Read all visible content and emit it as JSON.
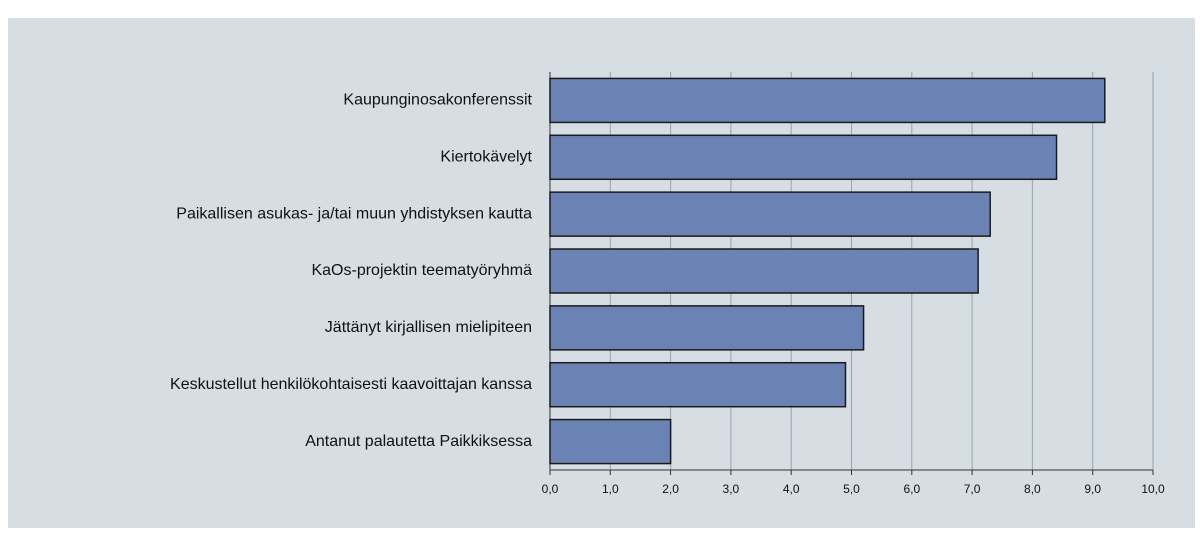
{
  "chart_data": {
    "type": "bar",
    "orientation": "horizontal",
    "categories": [
      "Kaupunginosakonferenssit",
      "Kiertokävelyt",
      "Paikallisen asukas- ja/tai muun yhdistyksen kautta",
      "KaOs-projektin teematyöryhmä",
      "Jättänyt kirjallisen mielipiteen",
      "Keskustellut henkilökohtaisesti kaavoittajan kanssa",
      "Antanut palautetta Paikkiksessa"
    ],
    "values": [
      9.2,
      8.4,
      7.3,
      7.1,
      5.2,
      4.9,
      2.0
    ],
    "color": "#6b83b4",
    "xlim": [
      0,
      10
    ],
    "xticks": [
      {
        "value": 0,
        "label": "0,0"
      },
      {
        "value": 1,
        "label": "1,0"
      },
      {
        "value": 2,
        "label": "2,0"
      },
      {
        "value": 3,
        "label": "3,0"
      },
      {
        "value": 4,
        "label": "4,0"
      },
      {
        "value": 5,
        "label": "5,0"
      },
      {
        "value": 6,
        "label": "6,0"
      },
      {
        "value": 7,
        "label": "7,0"
      },
      {
        "value": 8,
        "label": "8,0"
      },
      {
        "value": 9,
        "label": "9,0"
      },
      {
        "value": 10,
        "label": "10,0"
      }
    ],
    "grid": true
  }
}
